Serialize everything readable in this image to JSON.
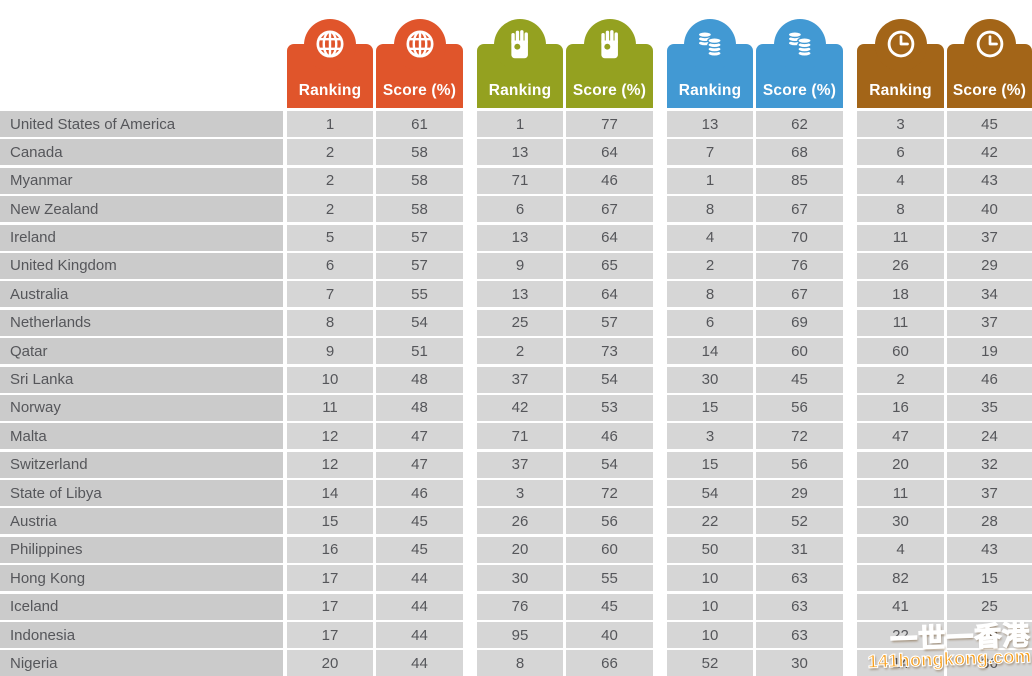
{
  "chart_data": {
    "type": "table",
    "column_groups": [
      {
        "name": "global",
        "icon": "globe-icon",
        "color": "#E0552B",
        "columns": [
          "Ranking",
          "Score (%)"
        ]
      },
      {
        "name": "helping",
        "icon": "hand-icon",
        "color": "#94A120",
        "columns": [
          "Ranking",
          "Score (%)"
        ]
      },
      {
        "name": "money",
        "icon": "coins-icon",
        "color": "#4299D3",
        "columns": [
          "Ranking",
          "Score (%)"
        ]
      },
      {
        "name": "time",
        "icon": "clock-icon",
        "color": "#A36518",
        "columns": [
          "Ranking",
          "Score (%)"
        ]
      }
    ],
    "rows": [
      {
        "country": "United States of America",
        "values": [
          1,
          61,
          1,
          77,
          13,
          62,
          3,
          45
        ]
      },
      {
        "country": "Canada",
        "values": [
          2,
          58,
          13,
          64,
          7,
          68,
          6,
          42
        ]
      },
      {
        "country": "Myanmar",
        "values": [
          2,
          58,
          71,
          46,
          1,
          85,
          4,
          43
        ]
      },
      {
        "country": "New Zealand",
        "values": [
          2,
          58,
          6,
          67,
          8,
          67,
          8,
          40
        ]
      },
      {
        "country": "Ireland",
        "values": [
          5,
          57,
          13,
          64,
          4,
          70,
          11,
          37
        ]
      },
      {
        "country": "United Kingdom",
        "values": [
          6,
          57,
          9,
          65,
          2,
          76,
          26,
          29
        ]
      },
      {
        "country": "Australia",
        "values": [
          7,
          55,
          13,
          64,
          8,
          67,
          18,
          34
        ]
      },
      {
        "country": "Netherlands",
        "values": [
          8,
          54,
          25,
          57,
          6,
          69,
          11,
          37
        ]
      },
      {
        "country": "Qatar",
        "values": [
          9,
          51,
          2,
          73,
          14,
          60,
          60,
          19
        ]
      },
      {
        "country": "Sri Lanka",
        "values": [
          10,
          48,
          37,
          54,
          30,
          45,
          2,
          46
        ]
      },
      {
        "country": "Norway",
        "values": [
          11,
          48,
          42,
          53,
          15,
          56,
          16,
          35
        ]
      },
      {
        "country": "Malta",
        "values": [
          12,
          47,
          71,
          46,
          3,
          72,
          47,
          24
        ]
      },
      {
        "country": "Switzerland",
        "values": [
          12,
          47,
          37,
          54,
          15,
          56,
          20,
          32
        ]
      },
      {
        "country": "State of Libya",
        "values": [
          14,
          46,
          3,
          72,
          54,
          29,
          11,
          37
        ]
      },
      {
        "country": "Austria",
        "values": [
          15,
          45,
          26,
          56,
          22,
          52,
          30,
          28
        ]
      },
      {
        "country": "Philippines",
        "values": [
          16,
          45,
          20,
          60,
          50,
          31,
          4,
          43
        ]
      },
      {
        "country": "Hong Kong",
        "values": [
          17,
          44,
          30,
          55,
          10,
          63,
          82,
          15
        ]
      },
      {
        "country": "Iceland",
        "values": [
          17,
          44,
          76,
          45,
          10,
          63,
          41,
          25
        ]
      },
      {
        "country": "Indonesia",
        "values": [
          17,
          44,
          95,
          40,
          10,
          63,
          22,
          30
        ]
      },
      {
        "country": "Nigeria",
        "values": [
          20,
          44,
          8,
          66,
          52,
          30,
          14,
          36
        ]
      }
    ]
  },
  "watermark": {
    "line1": "一世一香港",
    "line2": "141hongkong.com"
  }
}
